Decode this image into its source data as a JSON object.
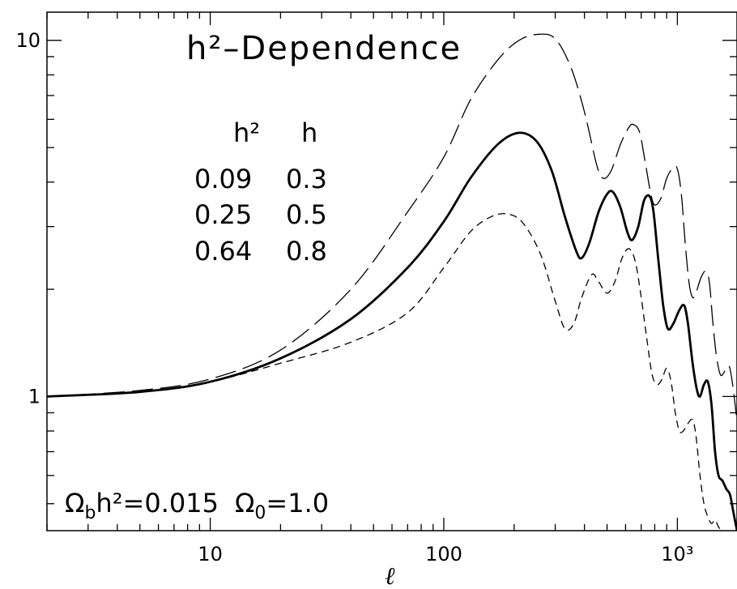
{
  "chart_data": {
    "type": "line",
    "title": "h²–Dependence",
    "xlabel": "ℓ",
    "ylabel": "",
    "xscale": "log",
    "yscale": "log",
    "xlim": [
      2,
      1800
    ],
    "ylim": [
      0.42,
      12
    ],
    "x_tick_labels": [
      {
        "value": 10,
        "label": "10"
      },
      {
        "value": 100,
        "label": "100"
      },
      {
        "value": 1000,
        "label": "10³"
      }
    ],
    "y_tick_labels": [
      {
        "value": 1,
        "label": "1"
      },
      {
        "value": 10,
        "label": "10"
      }
    ],
    "legend_table": {
      "headers": [
        "h²",
        "h"
      ],
      "rows": [
        [
          "0.09",
          "0.3"
        ],
        [
          "0.25",
          "0.5"
        ],
        [
          "0.64",
          "0.8"
        ]
      ]
    },
    "annotation": {
      "omega_b": "Ω",
      "omega_b_sub": "b",
      "omega_b_rest": "h²=0.015",
      "omega_0": "Ω",
      "omega_0_sub": "0",
      "omega_0_rest": "=1.0"
    },
    "series": [
      {
        "style": "long-dash",
        "stroke_width": 1.3,
        "points": [
          [
            2,
            1.0
          ],
          [
            5,
            1.04
          ],
          [
            10,
            1.12
          ],
          [
            20,
            1.35
          ],
          [
            40,
            2.0
          ],
          [
            70,
            3.3
          ],
          [
            100,
            4.7
          ],
          [
            130,
            6.8
          ],
          [
            170,
            8.8
          ],
          [
            210,
            10.0
          ],
          [
            255,
            10.4
          ],
          [
            300,
            10.1
          ],
          [
            350,
            8.4
          ],
          [
            400,
            6.3
          ],
          [
            450,
            4.5
          ],
          [
            480,
            4.1
          ],
          [
            520,
            4.3
          ],
          [
            570,
            5.1
          ],
          [
            620,
            5.7
          ],
          [
            650,
            5.8
          ],
          [
            690,
            5.5
          ],
          [
            730,
            4.5
          ],
          [
            770,
            3.7
          ],
          [
            800,
            3.45
          ],
          [
            850,
            3.6
          ],
          [
            900,
            4.1
          ],
          [
            960,
            4.4
          ],
          [
            1000,
            4.35
          ],
          [
            1040,
            3.7
          ],
          [
            1080,
            2.7
          ],
          [
            1120,
            2.1
          ],
          [
            1160,
            1.9
          ],
          [
            1200,
            1.95
          ],
          [
            1260,
            2.15
          ],
          [
            1320,
            2.25
          ],
          [
            1370,
            2.1
          ],
          [
            1420,
            1.6
          ],
          [
            1470,
            1.3
          ],
          [
            1530,
            1.15
          ],
          [
            1600,
            1.18
          ],
          [
            1660,
            1.22
          ],
          [
            1700,
            1.15
          ],
          [
            1750,
            1.0
          ],
          [
            1800,
            0.85
          ]
        ]
      },
      {
        "style": "solid",
        "stroke_width": 2.8,
        "points": [
          [
            2,
            1.0
          ],
          [
            5,
            1.03
          ],
          [
            10,
            1.1
          ],
          [
            20,
            1.28
          ],
          [
            40,
            1.65
          ],
          [
            70,
            2.3
          ],
          [
            100,
            3.1
          ],
          [
            130,
            4.1
          ],
          [
            170,
            5.1
          ],
          [
            210,
            5.5
          ],
          [
            250,
            5.2
          ],
          [
            290,
            4.3
          ],
          [
            330,
            3.2
          ],
          [
            370,
            2.55
          ],
          [
            390,
            2.45
          ],
          [
            420,
            2.7
          ],
          [
            460,
            3.3
          ],
          [
            500,
            3.7
          ],
          [
            530,
            3.75
          ],
          [
            570,
            3.4
          ],
          [
            610,
            2.9
          ],
          [
            640,
            2.75
          ],
          [
            680,
            3.0
          ],
          [
            720,
            3.55
          ],
          [
            760,
            3.65
          ],
          [
            790,
            3.3
          ],
          [
            830,
            2.4
          ],
          [
            870,
            1.8
          ],
          [
            910,
            1.55
          ],
          [
            960,
            1.6
          ],
          [
            1020,
            1.75
          ],
          [
            1070,
            1.8
          ],
          [
            1110,
            1.6
          ],
          [
            1160,
            1.25
          ],
          [
            1210,
            1.05
          ],
          [
            1250,
            1.0
          ],
          [
            1300,
            1.08
          ],
          [
            1350,
            1.1
          ],
          [
            1400,
            0.95
          ],
          [
            1450,
            0.7
          ],
          [
            1500,
            0.6
          ],
          [
            1560,
            0.58
          ],
          [
            1620,
            0.55
          ],
          [
            1680,
            0.53
          ],
          [
            1740,
            0.47
          ],
          [
            1800,
            0.42
          ]
        ]
      },
      {
        "style": "short-dash",
        "stroke_width": 1.3,
        "points": [
          [
            2,
            1.0
          ],
          [
            5,
            1.03
          ],
          [
            10,
            1.1
          ],
          [
            20,
            1.24
          ],
          [
            40,
            1.42
          ],
          [
            70,
            1.72
          ],
          [
            100,
            2.3
          ],
          [
            130,
            2.9
          ],
          [
            160,
            3.2
          ],
          [
            190,
            3.25
          ],
          [
            220,
            3.05
          ],
          [
            260,
            2.5
          ],
          [
            300,
            1.85
          ],
          [
            330,
            1.55
          ],
          [
            360,
            1.6
          ],
          [
            390,
            1.9
          ],
          [
            430,
            2.2
          ],
          [
            460,
            2.1
          ],
          [
            500,
            1.95
          ],
          [
            540,
            2.1
          ],
          [
            580,
            2.45
          ],
          [
            620,
            2.6
          ],
          [
            660,
            2.4
          ],
          [
            700,
            1.9
          ],
          [
            740,
            1.45
          ],
          [
            780,
            1.15
          ],
          [
            820,
            1.08
          ],
          [
            860,
            1.12
          ],
          [
            900,
            1.2
          ],
          [
            940,
            1.1
          ],
          [
            980,
            0.9
          ],
          [
            1020,
            0.8
          ],
          [
            1060,
            0.8
          ],
          [
            1110,
            0.84
          ],
          [
            1160,
            0.86
          ],
          [
            1200,
            0.78
          ],
          [
            1250,
            0.6
          ],
          [
            1300,
            0.5
          ],
          [
            1350,
            0.46
          ],
          [
            1400,
            0.44
          ],
          [
            1450,
            0.45
          ],
          [
            1500,
            0.43
          ],
          [
            1550,
            0.42
          ]
        ]
      }
    ]
  }
}
